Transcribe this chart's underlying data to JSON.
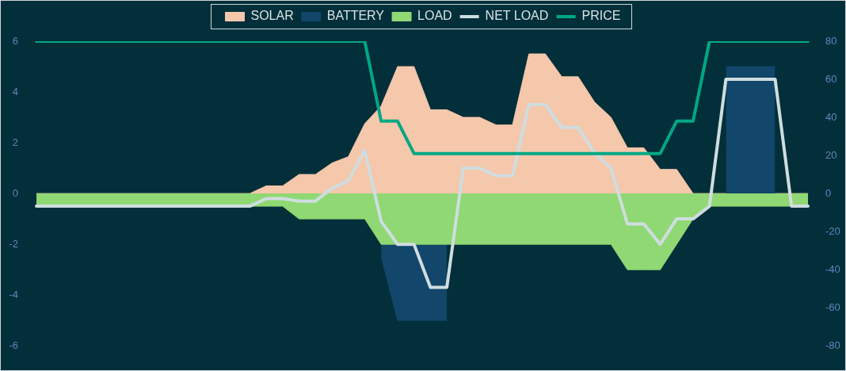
{
  "chart_data": {
    "type": "area",
    "legend": "top",
    "categories": [
      null,
      null,
      null,
      null,
      null,
      null,
      null,
      null,
      null,
      null,
      null,
      null,
      null,
      null,
      null,
      null,
      null,
      null,
      null,
      null,
      null,
      null,
      null,
      null,
      null,
      null,
      null,
      null,
      null,
      null,
      null,
      null,
      null,
      null,
      null,
      null,
      null,
      null,
      null,
      null,
      null,
      null,
      null,
      null,
      null,
      null,
      null,
      null
    ],
    "ylim": [
      -6,
      6
    ],
    "yticks": [
      -6,
      -4,
      -2,
      0,
      2,
      4,
      6
    ],
    "y2lim": [
      -80,
      80
    ],
    "y2ticks": [
      -80,
      -60,
      -40,
      -20,
      0,
      20,
      40,
      60,
      80
    ],
    "series": [
      {
        "name": "SOLAR",
        "color": "#f5c7ab",
        "values": [
          0,
          0,
          0,
          0,
          0,
          0,
          0,
          0,
          0,
          0,
          0,
          0,
          0,
          0,
          0.3,
          0.3,
          0.75,
          0.75,
          1.2,
          1.45,
          2.75,
          3.45,
          5,
          5,
          3.3,
          3.3,
          3,
          3,
          2.7,
          2.7,
          5.5,
          5.5,
          4.6,
          4.6,
          3.6,
          3,
          1.8,
          1.8,
          0.95,
          0.95,
          0,
          0,
          0,
          0,
          0,
          0,
          0,
          0
        ]
      },
      {
        "name": "BATTERY",
        "color": "#12466a",
        "values": [
          null,
          null,
          null,
          null,
          null,
          null,
          null,
          null,
          null,
          null,
          null,
          null,
          null,
          null,
          null,
          null,
          null,
          null,
          null,
          null,
          null,
          -2.5,
          -5,
          -5,
          -5,
          -5,
          null,
          null,
          null,
          null,
          null,
          null,
          null,
          null,
          null,
          null,
          null,
          null,
          null,
          null,
          null,
          null,
          5,
          5,
          5,
          5,
          null,
          null
        ]
      },
      {
        "name": "LOAD",
        "color": "#8fd873",
        "values": [
          -0.5,
          -0.5,
          -0.5,
          -0.5,
          -0.5,
          -0.5,
          -0.5,
          -0.5,
          -0.5,
          -0.5,
          -0.5,
          -0.5,
          -0.5,
          -0.5,
          -0.5,
          -0.5,
          -1,
          -1,
          -1,
          -1,
          -1,
          -2,
          -2,
          -2,
          -2,
          -2,
          -2,
          -2,
          -2,
          -2,
          -2,
          -2,
          -2,
          -2,
          -2,
          -2,
          -3,
          -3,
          -3,
          -2,
          -1,
          -0.5,
          -0.5,
          -0.5,
          -0.5,
          -0.5,
          -0.5,
          -0.5
        ]
      },
      {
        "name": "NET LOAD",
        "type": "line",
        "color": "#cfdde0",
        "values": [
          -0.5,
          -0.5,
          -0.5,
          -0.5,
          -0.5,
          -0.5,
          -0.5,
          -0.5,
          -0.5,
          -0.5,
          -0.5,
          -0.5,
          -0.5,
          -0.5,
          -0.2,
          -0.2,
          -0.3,
          -0.3,
          0.2,
          0.5,
          1.7,
          -1.1,
          -2,
          -2,
          -3.7,
          -3.7,
          1,
          1,
          0.7,
          0.7,
          3.5,
          3.5,
          2.6,
          2.6,
          1.6,
          1,
          -1.2,
          -1.2,
          -2,
          -1,
          -1,
          -0.5,
          4.5,
          4.5,
          4.5,
          4.5,
          -0.5,
          -0.5
        ]
      },
      {
        "name": "PRICE",
        "type": "line",
        "axis": "y2",
        "color": "#00a884",
        "values": [
          80,
          80,
          80,
          80,
          80,
          80,
          80,
          80,
          80,
          80,
          80,
          80,
          80,
          80,
          80,
          80,
          80,
          80,
          80,
          80,
          80,
          38,
          38,
          21,
          21,
          21,
          21,
          21,
          21,
          21,
          21,
          21,
          21,
          21,
          21,
          21,
          21,
          21,
          21,
          38,
          38,
          80,
          80,
          80,
          80,
          80,
          80,
          80
        ]
      }
    ]
  }
}
